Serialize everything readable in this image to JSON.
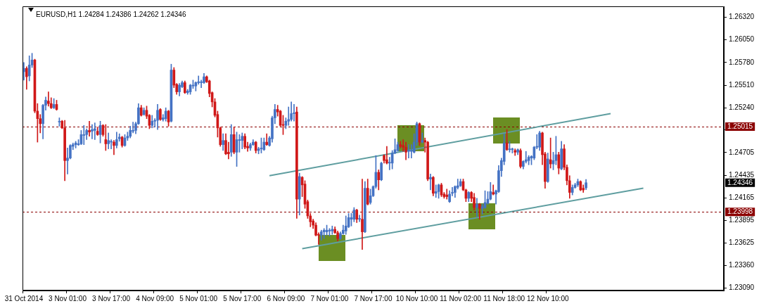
{
  "chart_data": {
    "type": "candlestick",
    "title": "EURUSD,H1 1.24284 1.24386 1.24262 1.24346",
    "categories": [
      "31 Oct 2014",
      null,
      null,
      null,
      null,
      null,
      null,
      null,
      null,
      null,
      null,
      null,
      null,
      null,
      null,
      null,
      "3 Nov 01:00",
      null,
      null,
      null,
      null,
      null,
      null,
      null,
      null,
      null,
      null,
      null,
      null,
      null,
      null,
      null,
      "3 Nov 17:00",
      null,
      null,
      null,
      null,
      null,
      null,
      null,
      null,
      null,
      null,
      null,
      null,
      null,
      null,
      null,
      "4 Nov 09:00",
      null,
      null,
      null,
      null,
      null,
      null,
      null,
      null,
      null,
      null,
      null,
      null,
      null,
      null,
      null,
      "5 Nov 01:00",
      null,
      null,
      null,
      null,
      null,
      null,
      null,
      null,
      null,
      null,
      null,
      null,
      null,
      null,
      null,
      "5 Nov 17:00",
      null,
      null,
      null,
      null,
      null,
      null,
      null,
      null,
      null,
      null,
      null,
      null,
      null,
      null,
      null,
      "6 Nov 09:00",
      null,
      null,
      null,
      null,
      null,
      null,
      null,
      null,
      null,
      null,
      null,
      null,
      null,
      null,
      null,
      "7 Nov 01:00",
      null,
      null,
      null,
      null,
      null,
      null,
      null,
      null,
      null,
      null,
      null,
      null,
      null,
      null,
      null,
      "7 Nov 17:00",
      null,
      null,
      null,
      null,
      null,
      null,
      null,
      null,
      null,
      null,
      null,
      null,
      null,
      null,
      null,
      "10 Nov 10:00",
      null,
      null,
      null,
      null,
      null,
      null,
      null,
      null,
      null,
      null,
      null,
      null,
      null,
      null,
      null,
      "11 Nov 02:00",
      null,
      null,
      null,
      null,
      null,
      null,
      null,
      null,
      null,
      null,
      null,
      null,
      null,
      null,
      null,
      "11 Nov 18:00",
      null,
      null,
      null,
      null,
      null,
      null,
      null,
      null,
      null,
      null,
      null,
      null,
      null,
      null,
      null,
      "12 Nov 10:00",
      null,
      null,
      null,
      null,
      null,
      null,
      null,
      null,
      null,
      null,
      null,
      null,
      null,
      null,
      null,
      null,
      null,
      null,
      null,
      null,
      null,
      null,
      null,
      null,
      null,
      null,
      null,
      null,
      null,
      null,
      null,
      null,
      null,
      null,
      null,
      null,
      null,
      null,
      null,
      null,
      null,
      null,
      null,
      null,
      null,
      null,
      null,
      null,
      null,
      null,
      null,
      null,
      null,
      null,
      null,
      null,
      null,
      null,
      null,
      null,
      null,
      null,
      null,
      null
    ],
    "colors": [
      "#4472c4",
      "#d01818",
      "#4472c4",
      "#4472c4",
      "#d01818",
      "#d01818",
      "#d01818",
      "#4472c4",
      "#4472c4",
      "#d01818",
      "#d01818",
      "#4472c4",
      "#d01818",
      "#4472c4",
      "#d01818",
      "#d01818",
      "#4472c4",
      "#4472c4",
      "#4472c4",
      "#4472c4",
      "#4472c4",
      "#4472c4",
      "#4472c4",
      "#4472c4",
      "#d01818",
      "#4472c4",
      "#4472c4",
      "#d01818",
      "#4472c4",
      "#d01818",
      "#d01818",
      "#4472c4",
      "#4472c4",
      "#d01818",
      "#4472c4",
      "#4472c4",
      "#d01818",
      "#4472c4",
      "#4472c4",
      "#4472c4",
      "#4472c4",
      "#4472c4",
      "#4472c4",
      "#d01818",
      "#4472c4",
      "#d01818",
      "#d01818",
      "#4472c4",
      "#4472c4",
      "#4472c4",
      "#d01818",
      "#4472c4",
      "#4472c4",
      "#d01818",
      "#4472c4",
      "#d01818",
      "#d01818",
      "#4472c4",
      "#4472c4",
      "#d01818",
      "#4472c4",
      "#4472c4",
      "#4472c4",
      "#4472c4",
      "#4472c4",
      "#4472c4",
      "#4472c4",
      "#d01818",
      "#d01818",
      "#d01818",
      "#d01818",
      "#d01818",
      "#d01818",
      "#4472c4",
      "#d01818",
      "#d01818",
      "#4472c4",
      "#d01818",
      "#4472c4",
      "#4472c4",
      "#4472c4",
      "#d01818",
      "#d01818",
      "#4472c4",
      "#4472c4",
      "#d01818",
      "#4472c4",
      "#4472c4",
      "#4472c4",
      "#d01818",
      "#4472c4",
      "#4472c4",
      "#4472c4",
      "#d01818",
      "#d01818",
      "#d01818",
      "#4472c4",
      "#4472c4",
      "#4472c4",
      "#4472c4",
      "#d01818",
      "#4472c4",
      "#d01818",
      "#d01818",
      "#d01818",
      "#d01818",
      "#d01818",
      "#d01818",
      "#d01818",
      "#4472c4",
      "#4472c4",
      "#4472c4",
      "#4472c4",
      "#4472c4",
      "#d01818",
      "#d01818",
      "#4472c4",
      "#4472c4",
      "#4472c4",
      "#4472c4",
      "#4472c4",
      "#4472c4",
      "#d01818",
      "#4472c4",
      "#d01818",
      "#4472c4",
      "#d01818",
      "#4472c4",
      "#4472c4",
      "#4472c4",
      "#d01818",
      "#4472c4",
      "#d01818",
      "#d01818",
      "#4472c4",
      "#4472c4",
      "#4472c4",
      "#4472c4",
      "#d01818",
      "#d01818",
      "#d01818",
      "#4472c4",
      "#4472c4",
      "#4472c4",
      "#4472c4",
      "#d01818",
      "#4472c4",
      "#d01818",
      "#d01818",
      "#4472c4",
      "#d01818",
      "#4472c4",
      "#4472c4",
      "#d01818",
      "#d01818",
      "#d01818",
      "#4472c4",
      "#4472c4",
      "#4472c4",
      "#4472c4",
      "#4472c4",
      "#d01818",
      "#d01818",
      "#4472c4",
      "#d01818",
      "#d01818",
      "#4472c4",
      "#d01818",
      "#4472c4",
      "#4472c4",
      "#4472c4",
      "#4472c4",
      "#d01818",
      "#4472c4",
      "#4472c4",
      "#4472c4",
      "#4472c4",
      "#d01818",
      "#4472c4",
      "#4472c4",
      "#d01818",
      "#4472c4",
      "#d01818",
      "#4472c4",
      "#4472c4",
      "#4472c4",
      "#4472c4",
      "#4472c4",
      "#4472c4",
      "#4472c4",
      "#d01818",
      "#d01818",
      "#4472c4",
      "#d01818",
      "#4472c4",
      "#4472c4",
      "#d01818",
      "#4472c4",
      "#d01818",
      "#d01818",
      "#d01818",
      "#4472c4",
      "#4472c4",
      "#4472c4",
      "#d01818",
      "#d01818",
      "#4472c4",
      null,
      null,
      null,
      null,
      null,
      null,
      null,
      null,
      null,
      null,
      null,
      null,
      null,
      null,
      null,
      null,
      null,
      null,
      null,
      null,
      null,
      null,
      null,
      null,
      null,
      null,
      null,
      null,
      null,
      null,
      null,
      null,
      null,
      null,
      null,
      null,
      null,
      null,
      null,
      null,
      null,
      null,
      null,
      null,
      null,
      null,
      null,
      null,
      null,
      null
    ],
    "ohlc": [
      [
        1.2567,
        1.2578,
        1.2557,
        1.2571
      ],
      [
        1.2571,
        1.2573,
        1.2546,
        1.2561
      ],
      [
        1.2562,
        1.2586,
        1.2556,
        1.2575
      ],
      [
        1.2575,
        1.2589,
        1.2572,
        1.2581
      ],
      [
        1.2581,
        1.2582,
        1.2518,
        1.252
      ],
      [
        1.252,
        1.2529,
        1.2483,
        1.2511
      ],
      [
        1.2511,
        1.2516,
        1.2494,
        1.2505
      ],
      [
        1.2505,
        1.2528,
        1.2487,
        1.2527
      ],
      [
        1.2527,
        1.2537,
        1.2521,
        1.2533
      ],
      [
        1.2532,
        1.2543,
        1.2526,
        1.2529
      ],
      [
        1.2529,
        1.2536,
        1.2523,
        1.2524
      ],
      [
        1.2524,
        1.2535,
        1.2523,
        1.2528
      ],
      [
        1.2528,
        1.2533,
        1.2521,
        1.2522
      ],
      [
        1.2507,
        1.2512,
        1.2502,
        1.2507
      ],
      [
        1.2508,
        1.2509,
        1.2499,
        1.25
      ],
      [
        1.25,
        1.2509,
        1.2437,
        1.2461
      ],
      [
        1.2461,
        1.2476,
        1.2445,
        1.2464
      ],
      [
        1.2464,
        1.248,
        1.2463,
        1.2479
      ],
      [
        1.2478,
        1.2482,
        1.2474,
        1.248
      ],
      [
        1.248,
        1.2484,
        1.2476,
        1.2482
      ],
      [
        1.248,
        1.2486,
        1.2479,
        1.2481
      ],
      [
        1.2481,
        1.2497,
        1.248,
        1.2492
      ],
      [
        1.2491,
        1.2503,
        1.248,
        1.2492
      ],
      [
        1.2492,
        1.2499,
        1.2486,
        1.2497
      ],
      [
        1.2497,
        1.2508,
        1.249,
        1.2495
      ],
      [
        1.2496,
        1.2504,
        1.2487,
        1.2498
      ],
      [
        1.2497,
        1.2506,
        1.2486,
        1.2499
      ],
      [
        1.2496,
        1.2501,
        1.2491,
        1.2492
      ],
      [
        1.2492,
        1.2508,
        1.2482,
        1.2503
      ],
      [
        1.2503,
        1.2504,
        1.249,
        1.2492
      ],
      [
        1.2486,
        1.2504,
        1.2473,
        1.2481
      ],
      [
        1.2481,
        1.2494,
        1.2475,
        1.2485
      ],
      [
        1.2483,
        1.2486,
        1.2475,
        1.2484
      ],
      [
        1.2483,
        1.2485,
        1.2468,
        1.2479
      ],
      [
        1.2479,
        1.2495,
        1.2476,
        1.2486
      ],
      [
        1.2487,
        1.2493,
        1.2484,
        1.2489
      ],
      [
        1.2489,
        1.249,
        1.2477,
        1.2479
      ],
      [
        1.2479,
        1.2492,
        1.2478,
        1.2488
      ],
      [
        1.2488,
        1.2495,
        1.2485,
        1.249
      ],
      [
        1.249,
        1.2502,
        1.2488,
        1.2497
      ],
      [
        1.2496,
        1.2507,
        1.2494,
        1.2497
      ],
      [
        1.2497,
        1.2507,
        1.2493,
        1.2505
      ],
      [
        1.2505,
        1.2529,
        1.2504,
        1.2524
      ],
      [
        1.2524,
        1.2527,
        1.2514,
        1.2515
      ],
      [
        1.2516,
        1.2524,
        1.2515,
        1.2521
      ],
      [
        1.2521,
        1.2526,
        1.2511,
        1.2514
      ],
      [
        1.2515,
        1.2516,
        1.2499,
        1.2503
      ],
      [
        1.2503,
        1.2515,
        1.25,
        1.2508
      ],
      [
        1.2508,
        1.2511,
        1.2501,
        1.2509
      ],
      [
        1.2509,
        1.2528,
        1.2498,
        1.2521
      ],
      [
        1.2522,
        1.2523,
        1.2509,
        1.251
      ],
      [
        1.251,
        1.2516,
        1.2508,
        1.2512
      ],
      [
        1.2511,
        1.2524,
        1.2508,
        1.252
      ],
      [
        1.252,
        1.2521,
        1.2502,
        1.2507
      ],
      [
        1.2508,
        1.2576,
        1.2507,
        1.2569
      ],
      [
        1.2569,
        1.2572,
        1.2548,
        1.2551
      ],
      [
        1.2552,
        1.2553,
        1.254,
        1.2543
      ],
      [
        1.2543,
        1.2553,
        1.2538,
        1.2551
      ],
      [
        1.2549,
        1.2556,
        1.2548,
        1.2554
      ],
      [
        1.2554,
        1.2556,
        1.2541,
        1.2542
      ],
      [
        1.2542,
        1.2546,
        1.254,
        1.2544
      ],
      [
        1.2543,
        1.2552,
        1.254,
        1.2551
      ],
      [
        1.255,
        1.2557,
        1.2547,
        1.2551
      ],
      [
        1.255,
        1.2555,
        1.2544,
        1.2554
      ],
      [
        1.2554,
        1.2562,
        1.2552,
        1.2555
      ],
      [
        1.2554,
        1.2557,
        1.2548,
        1.2555
      ],
      [
        1.2554,
        1.2565,
        1.2553,
        1.2561
      ],
      [
        1.2561,
        1.2562,
        1.2554,
        1.2555
      ],
      [
        1.2556,
        1.2557,
        1.2537,
        1.2541
      ],
      [
        1.2542,
        1.2543,
        1.2525,
        1.2531
      ],
      [
        1.2531,
        1.2535,
        1.2513,
        1.2515
      ],
      [
        1.2516,
        1.252,
        1.2489,
        1.25
      ],
      [
        1.25,
        1.2501,
        1.2478,
        1.248
      ],
      [
        1.248,
        1.2493,
        1.2473,
        1.2485
      ],
      [
        1.2485,
        1.2493,
        1.2468,
        1.2469
      ],
      [
        1.2471,
        1.2483,
        1.2463,
        1.2469
      ],
      [
        1.2471,
        1.2504,
        1.2466,
        1.2492
      ],
      [
        1.2492,
        1.2501,
        1.2469,
        1.2471
      ],
      [
        1.2471,
        1.2495,
        1.2454,
        1.2486
      ],
      [
        1.2485,
        1.2492,
        1.2471,
        1.2486
      ],
      [
        1.2485,
        1.2494,
        1.2475,
        1.249
      ],
      [
        1.249,
        1.2493,
        1.2475,
        1.2477
      ],
      [
        1.2478,
        1.2483,
        1.2472,
        1.2476
      ],
      [
        1.2476,
        1.2482,
        1.2473,
        1.248
      ],
      [
        1.248,
        1.2486,
        1.2479,
        1.2483
      ],
      [
        1.2483,
        1.2484,
        1.247,
        1.2473
      ],
      [
        1.2473,
        1.2477,
        1.2469,
        1.2475
      ],
      [
        1.2475,
        1.2488,
        1.247,
        1.2476
      ],
      [
        1.2474,
        1.2488,
        1.2473,
        1.2483
      ],
      [
        1.2483,
        1.2493,
        1.2479,
        1.248
      ],
      [
        1.2479,
        1.249,
        1.2478,
        1.2488
      ],
      [
        1.2487,
        1.2514,
        1.2483,
        1.2512
      ],
      [
        1.2512,
        1.2528,
        1.2505,
        1.2522
      ],
      [
        1.2522,
        1.2527,
        1.2514,
        1.2519
      ],
      [
        1.252,
        1.2521,
        1.2502,
        1.2503
      ],
      [
        1.2504,
        1.2515,
        1.2492,
        1.2503
      ],
      [
        1.2503,
        1.2512,
        1.2499,
        1.2508
      ],
      [
        1.2508,
        1.2525,
        1.2503,
        1.251
      ],
      [
        1.251,
        1.2531,
        1.2508,
        1.2517
      ],
      [
        1.2517,
        1.2528,
        1.2508,
        1.2518
      ],
      [
        1.2519,
        1.2525,
        1.2392,
        1.2415
      ],
      [
        1.2415,
        1.2446,
        1.2396,
        1.2442
      ],
      [
        1.2441,
        1.2442,
        1.2418,
        1.2432
      ],
      [
        1.2433,
        1.2437,
        1.2404,
        1.2409
      ],
      [
        1.2412,
        1.2414,
        1.2392,
        1.2395
      ],
      [
        1.2395,
        1.2398,
        1.2382,
        1.2388
      ],
      [
        1.2389,
        1.2391,
        1.238,
        1.2384
      ],
      [
        1.2384,
        1.2387,
        1.2371,
        1.2372
      ],
      [
        1.2373,
        1.2375,
        1.2361,
        1.2372
      ],
      [
        1.2372,
        1.2378,
        1.2366,
        1.2376
      ],
      [
        1.2376,
        1.238,
        1.2368,
        1.2378
      ],
      [
        1.2376,
        1.2384,
        1.2372,
        1.2378
      ],
      [
        1.2377,
        1.238,
        1.2371,
        1.2378
      ],
      [
        1.2377,
        1.2383,
        1.2373,
        1.2379
      ],
      [
        1.2379,
        1.2382,
        1.2374,
        1.2375
      ],
      [
        1.2375,
        1.2377,
        1.2365,
        1.2368
      ],
      [
        1.2368,
        1.2376,
        1.2367,
        1.2374
      ],
      [
        1.2374,
        1.2384,
        1.2373,
        1.2378
      ],
      [
        1.2377,
        1.2395,
        1.2373,
        1.2383
      ],
      [
        1.2382,
        1.2398,
        1.2381,
        1.2393
      ],
      [
        1.2391,
        1.2398,
        1.2383,
        1.2393
      ],
      [
        1.2391,
        1.2405,
        1.2388,
        1.2402
      ],
      [
        1.2402,
        1.2403,
        1.2387,
        1.2391
      ],
      [
        1.2391,
        1.2396,
        1.2388,
        1.2392
      ],
      [
        1.2391,
        1.2439,
        1.2355,
        1.2376
      ],
      [
        1.2376,
        1.2436,
        1.2375,
        1.2428
      ],
      [
        1.2428,
        1.2439,
        1.2408,
        1.2409
      ],
      [
        1.2411,
        1.2427,
        1.2409,
        1.2419
      ],
      [
        1.2419,
        1.2431,
        1.2418,
        1.243
      ],
      [
        1.243,
        1.2467,
        1.2428,
        1.2447
      ],
      [
        1.2447,
        1.245,
        1.2426,
        1.2438
      ],
      [
        1.2438,
        1.2459,
        1.2437,
        1.2458
      ],
      [
        1.2467,
        1.2468,
        1.2458,
        1.2461
      ],
      [
        1.2462,
        1.2478,
        1.2457,
        1.2458
      ],
      [
        1.2458,
        1.2465,
        1.245,
        1.2459
      ],
      [
        1.2458,
        1.2473,
        1.2451,
        1.247
      ],
      [
        1.247,
        1.2487,
        1.2469,
        1.2474
      ],
      [
        1.2473,
        1.2483,
        1.2472,
        1.248
      ],
      [
        1.248,
        1.2484,
        1.2476,
        1.2478
      ],
      [
        1.2479,
        1.2486,
        1.2472,
        1.2477
      ],
      [
        1.2477,
        1.2483,
        1.2462,
        1.2471
      ],
      [
        1.2472,
        1.248,
        1.2464,
        1.2472
      ],
      [
        1.2472,
        1.248,
        1.2464,
        1.2472
      ],
      [
        1.2471,
        1.2493,
        1.247,
        1.2483
      ],
      [
        1.2483,
        1.2507,
        1.2479,
        1.2505
      ],
      [
        1.2505,
        1.2506,
        1.2479,
        1.2483
      ],
      [
        1.2483,
        1.2494,
        1.2482,
        1.2485
      ],
      [
        1.2485,
        1.2488,
        1.2471,
        1.2483
      ],
      [
        1.2483,
        1.2484,
        1.2437,
        1.2439
      ],
      [
        1.2439,
        1.2445,
        1.2426,
        1.2441
      ],
      [
        1.2441,
        1.2442,
        1.2419,
        1.2422
      ],
      [
        1.2422,
        1.2432,
        1.2417,
        1.2424
      ],
      [
        1.2424,
        1.2433,
        1.2416,
        1.2432
      ],
      [
        1.2432,
        1.2434,
        1.2418,
        1.242
      ],
      [
        1.2421,
        1.2423,
        1.2416,
        1.2418
      ],
      [
        1.242,
        1.2427,
        1.2415,
        1.2418
      ],
      [
        1.2412,
        1.2425,
        1.2411,
        1.2421
      ],
      [
        1.2422,
        1.2429,
        1.2419,
        1.2423
      ],
      [
        1.2423,
        1.2431,
        1.2417,
        1.243
      ],
      [
        1.2429,
        1.2439,
        1.2427,
        1.2431
      ],
      [
        1.2431,
        1.2439,
        1.243,
        1.2436
      ],
      [
        1.2436,
        1.2439,
        1.2425,
        1.2426
      ],
      [
        1.2426,
        1.2427,
        1.2412,
        1.2416
      ],
      [
        1.2416,
        1.2424,
        1.2412,
        1.2423
      ],
      [
        1.2423,
        1.2424,
        1.2412,
        1.2416
      ],
      [
        1.2417,
        1.2422,
        1.2402,
        1.2405
      ],
      [
        1.2405,
        1.2416,
        1.2394,
        1.2409
      ],
      [
        1.2409,
        1.241,
        1.2391,
        1.2404
      ],
      [
        1.2404,
        1.2409,
        1.2397,
        1.2406
      ],
      [
        1.2405,
        1.2425,
        1.2404,
        1.2411
      ],
      [
        1.241,
        1.2424,
        1.2409,
        1.2415
      ],
      [
        1.2415,
        1.2435,
        1.2414,
        1.2424
      ],
      [
        1.2423,
        1.2432,
        1.242,
        1.2421
      ],
      [
        1.2421,
        1.2426,
        1.2409,
        1.2425
      ],
      [
        1.2424,
        1.2455,
        1.2423,
        1.2449
      ],
      [
        1.2449,
        1.2464,
        1.2442,
        1.2461
      ],
      [
        1.246,
        1.2493,
        1.2456,
        1.2482
      ],
      [
        1.2482,
        1.2498,
        1.2473,
        1.2474
      ],
      [
        1.2474,
        1.2484,
        1.2471,
        1.2475
      ],
      [
        1.2474,
        1.2476,
        1.247,
        1.2475
      ],
      [
        1.2473,
        1.2475,
        1.2467,
        1.2471
      ],
      [
        1.2471,
        1.2475,
        1.2468,
        1.2474
      ],
      [
        1.2473,
        1.2475,
        1.2452,
        1.2454
      ],
      [
        1.2454,
        1.2461,
        1.2451,
        1.246
      ],
      [
        1.246,
        1.2472,
        1.2458,
        1.2462
      ],
      [
        1.2461,
        1.2467,
        1.2456,
        1.2465
      ],
      [
        1.2464,
        1.2467,
        1.2456,
        1.2466
      ],
      [
        1.2464,
        1.2478,
        1.2462,
        1.2477
      ],
      [
        1.2477,
        1.2492,
        1.2475,
        1.2478
      ],
      [
        1.2477,
        1.2496,
        1.2473,
        1.2494
      ],
      [
        1.2494,
        1.2495,
        1.2456,
        1.2468
      ],
      [
        1.2469,
        1.2471,
        1.2428,
        1.2436
      ],
      [
        1.2436,
        1.247,
        1.2435,
        1.2463
      ],
      [
        1.2462,
        1.2488,
        1.2452,
        1.2457
      ],
      [
        1.2457,
        1.2471,
        1.245,
        1.2461
      ],
      [
        1.2461,
        1.249,
        1.2456,
        1.2468
      ],
      [
        1.2468,
        1.2471,
        1.2445,
        1.2452
      ],
      [
        1.2451,
        1.2484,
        1.245,
        1.2475
      ],
      [
        1.2475,
        1.248,
        1.245,
        1.2453
      ],
      [
        1.2453,
        1.2456,
        1.2432,
        1.2437
      ],
      [
        1.2437,
        1.2443,
        1.2416,
        1.2423
      ],
      [
        1.2423,
        1.2432,
        1.242,
        1.2429
      ],
      [
        1.2429,
        1.2434,
        1.2428,
        1.2432
      ],
      [
        1.2432,
        1.2439,
        1.243,
        1.2436
      ],
      [
        1.2436,
        1.2437,
        1.2425,
        1.2426
      ],
      [
        1.2428,
        1.2432,
        1.2423,
        1.2426
      ],
      [
        1.24284,
        1.24386,
        1.24262,
        1.24346
      ],
      null,
      null,
      null,
      null,
      null,
      null,
      null,
      null,
      null,
      null,
      null,
      null,
      null,
      null,
      null,
      null,
      null,
      null,
      null,
      null,
      null,
      null,
      null,
      null,
      null,
      null,
      null,
      null,
      null,
      null,
      null,
      null,
      null,
      null,
      null,
      null,
      null,
      null,
      null,
      null,
      null,
      null,
      null,
      null,
      null,
      null,
      null,
      null,
      null,
      null
    ],
    "series": [
      {
        "type": "line",
        "color": "#5f9ea0",
        "values": [
          null,
          null,
          null,
          null,
          null,
          null,
          null,
          null,
          null,
          null,
          null,
          null,
          null,
          null,
          null,
          null,
          null,
          null,
          null,
          null,
          null,
          null,
          null,
          null,
          null,
          null,
          null,
          null,
          null,
          null,
          null,
          null,
          null,
          null,
          null,
          null,
          null,
          null,
          null,
          null,
          null,
          null,
          null,
          null,
          null,
          null,
          null,
          null,
          null,
          null,
          null,
          null,
          null,
          null,
          null,
          null,
          null,
          null,
          null,
          null,
          null,
          null,
          null,
          null,
          null,
          null,
          null,
          null,
          null,
          null,
          null,
          null,
          null,
          null,
          null,
          null,
          null,
          null,
          null,
          null,
          null,
          null,
          null,
          null,
          null,
          null,
          null,
          null,
          null,
          null,
          1.2443,
          null,
          null,
          null,
          null,
          null,
          null,
          null,
          null,
          null,
          null,
          null,
          null,
          null,
          null,
          null,
          null,
          null,
          null,
          null,
          null,
          null,
          null,
          null,
          null,
          null,
          null,
          null,
          null,
          null,
          null,
          null,
          null,
          null,
          null,
          null,
          null,
          null,
          null,
          null,
          null,
          null,
          null,
          null,
          null,
          null,
          null,
          null,
          null,
          null,
          null,
          null,
          null,
          null,
          null,
          null,
          null,
          null,
          null,
          null,
          null,
          null,
          null,
          null,
          null,
          null,
          null,
          null,
          null,
          null,
          null,
          null,
          null,
          null,
          null,
          null,
          null,
          null,
          null,
          null,
          null,
          null,
          null,
          null,
          null,
          null,
          null,
          null,
          null,
          null,
          null,
          null,
          null,
          null,
          null,
          null,
          null,
          null,
          null,
          null,
          null,
          null,
          null,
          null,
          null,
          null,
          null,
          null,
          null,
          null,
          null,
          null,
          null,
          null,
          null,
          null,
          null,
          null,
          null,
          null,
          null,
          null,
          null,
          null,
          null,
          1.2517,
          null,
          null,
          null,
          null,
          null,
          null,
          null,
          null,
          null,
          null,
          null,
          null,
          null,
          null,
          null,
          null,
          null,
          null,
          null,
          null,
          null,
          null,
          null,
          null,
          null,
          null,
          null,
          null,
          null,
          null,
          null,
          null,
          null,
          null,
          null,
          null,
          null,
          null,
          null,
          null,
          null
        ]
      },
      {
        "type": "line",
        "color": "#5f9ea0",
        "values": [
          null,
          null,
          null,
          null,
          null,
          null,
          null,
          null,
          null,
          null,
          null,
          null,
          null,
          null,
          null,
          null,
          null,
          null,
          null,
          null,
          null,
          null,
          null,
          null,
          null,
          null,
          null,
          null,
          null,
          null,
          null,
          null,
          null,
          null,
          null,
          null,
          null,
          null,
          null,
          null,
          null,
          null,
          null,
          null,
          null,
          null,
          null,
          null,
          null,
          null,
          null,
          null,
          null,
          null,
          null,
          null,
          null,
          null,
          null,
          null,
          null,
          null,
          null,
          null,
          null,
          null,
          null,
          null,
          null,
          null,
          null,
          null,
          null,
          null,
          null,
          null,
          null,
          null,
          null,
          null,
          null,
          null,
          null,
          null,
          null,
          null,
          null,
          null,
          null,
          null,
          null,
          null,
          null,
          null,
          null,
          null,
          null,
          null,
          null,
          null,
          null,
          null,
          1.2356,
          null,
          null,
          null,
          null,
          null,
          null,
          null,
          null,
          null,
          null,
          null,
          null,
          null,
          null,
          null,
          null,
          null,
          null,
          null,
          null,
          null,
          null,
          null,
          null,
          null,
          null,
          null,
          null,
          null,
          null,
          null,
          null,
          null,
          null,
          null,
          null,
          null,
          null,
          null,
          null,
          null,
          null,
          null,
          null,
          null,
          null,
          null,
          null,
          null,
          null,
          null,
          null,
          null,
          null,
          null,
          null,
          null,
          null,
          null,
          null,
          null,
          null,
          null,
          null,
          null,
          null,
          null,
          null,
          null,
          null,
          null,
          null,
          null,
          null,
          null,
          null,
          null,
          null,
          null,
          null,
          null,
          null,
          null,
          null,
          null,
          null,
          null,
          null,
          null,
          null,
          null,
          null,
          null,
          null,
          null,
          null,
          null,
          null,
          null,
          null,
          null,
          null,
          null,
          null,
          null,
          null,
          null,
          null,
          null,
          null,
          null,
          null,
          null,
          null,
          null,
          null,
          null,
          null,
          null,
          null,
          null,
          null,
          null,
          null,
          1.2428,
          null,
          null,
          null,
          null,
          null,
          null,
          null,
          null,
          null,
          null,
          null,
          null,
          null,
          null,
          null,
          null,
          null,
          null,
          null,
          null,
          null,
          null,
          null,
          null,
          null,
          null,
          null,
          null,
          null
        ]
      }
    ],
    "ylim": [
      1.2306,
      1.2645
    ],
    "yticks": [
      {
        "value": 1.2632,
        "label": "1.26320"
      },
      {
        "value": 1.2605,
        "label": "1.26050"
      },
      {
        "value": 1.2578,
        "label": "1.25780"
      },
      {
        "value": 1.2551,
        "label": "1.25510"
      },
      {
        "value": 1.2524,
        "label": "1.25240"
      },
      {
        "value": 1.24975,
        "label": null
      },
      {
        "value": 1.24705,
        "label": "1.24705"
      },
      {
        "value": 1.24435,
        "label": "1.24435"
      },
      {
        "value": 1.24165,
        "label": "1.24165"
      },
      {
        "value": 1.23895,
        "label": "1.23895"
      },
      {
        "value": 1.23625,
        "label": "1.23625"
      },
      {
        "value": 1.2336,
        "label": "1.23360"
      },
      {
        "value": 1.2309,
        "label": "1.23090"
      }
    ],
    "ref_lines": [
      {
        "axis": "y",
        "value": 1.25015,
        "label": "1.25015",
        "color": "#8b0000",
        "line_style": "dashed"
      },
      {
        "axis": "y",
        "value": 1.23998,
        "label": "1.23998",
        "color": "#8b0000",
        "line_style": "dashed"
      }
    ],
    "annotations": [
      "1.24346"
    ]
  }
}
